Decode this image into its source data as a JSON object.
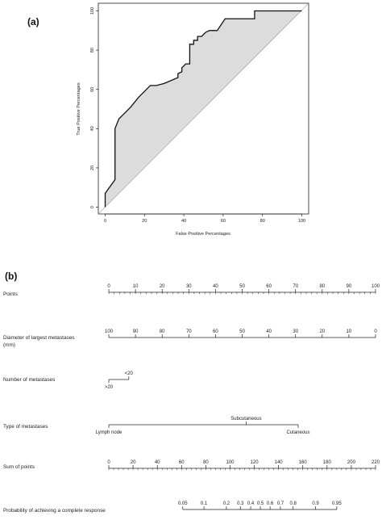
{
  "chart_data": [
    {
      "type": "line",
      "panel_label": "(a)",
      "xlabel": "False Positive Percentages",
      "ylabel": "True Positive Percentages",
      "xlim": [
        0,
        100
      ],
      "ylim": [
        0,
        100
      ],
      "x_ticks": [
        "0",
        "20",
        "40",
        "60",
        "80",
        "100"
      ],
      "y_ticks": [
        "0",
        "20",
        "40",
        "60",
        "80",
        "100"
      ],
      "fill": "#dcdcdc",
      "diagonal": true,
      "series": [
        {
          "x": [
            0,
            0,
            5,
            5,
            7,
            9,
            13,
            17,
            23,
            26,
            30,
            37,
            37,
            39,
            39,
            41,
            41,
            43,
            43,
            45,
            45,
            47,
            47,
            49,
            51,
            53,
            57,
            59,
            61,
            63,
            76,
            76,
            100,
            100
          ],
          "y": [
            0,
            7,
            14,
            40,
            45,
            47,
            51,
            56,
            62,
            62,
            63,
            66,
            68,
            69,
            71,
            73,
            73,
            73,
            83,
            83,
            85,
            85,
            87,
            87,
            89,
            90,
            90,
            93,
            96,
            96,
            96,
            100,
            100,
            100
          ]
        }
      ]
    },
    {
      "type": "nomogram",
      "panel_label": "(b)",
      "rows": [
        {
          "label": "Points",
          "label_lines": [
            "Points"
          ],
          "ticks": [
            {
              "label": "0",
              "pos": 0
            },
            {
              "label": "10",
              "pos": 10
            },
            {
              "label": "20",
              "pos": 20
            },
            {
              "label": "30",
              "pos": 30
            },
            {
              "label": "40",
              "pos": 40
            },
            {
              "label": "50",
              "pos": 50
            },
            {
              "label": "60",
              "pos": 60
            },
            {
              "label": "70",
              "pos": 70
            },
            {
              "label": "80",
              "pos": 80
            },
            {
              "label": "90",
              "pos": 90
            },
            {
              "label": "100",
              "pos": 100
            }
          ],
          "minor_step": 2,
          "range": [
            0,
            100
          ]
        },
        {
          "label": "Diameter of largest metastases (mm)",
          "label_lines": [
            "Diameter of largest metastases",
            "(mm)"
          ],
          "ticks": [
            {
              "label": "100",
              "pos": 0
            },
            {
              "label": "90",
              "pos": 10
            },
            {
              "label": "80",
              "pos": 20
            },
            {
              "label": "70",
              "pos": 30
            },
            {
              "label": "60",
              "pos": 40
            },
            {
              "label": "50",
              "pos": 50
            },
            {
              "label": "40",
              "pos": 60
            },
            {
              "label": "30",
              "pos": 70
            },
            {
              "label": "20",
              "pos": 80
            },
            {
              "label": "10",
              "pos": 90
            },
            {
              "label": "0",
              "pos": 100
            }
          ],
          "range": [
            0,
            100
          ]
        },
        {
          "label": "Number of metastases",
          "label_lines": [
            "Number of metastases"
          ],
          "ticks": [
            {
              "label": ">20",
              "pos": 0,
              "side": "below"
            },
            {
              "label": "<20",
              "pos": 7.5,
              "side": "above"
            }
          ],
          "range": [
            0,
            7.5
          ]
        },
        {
          "label": "Type of metastases",
          "label_lines": [
            "Type of metastases"
          ],
          "ticks": [
            {
              "label": "Lymph node",
              "pos": 0,
              "side": "below"
            },
            {
              "label": "Subcutaneous",
              "pos": 51.5,
              "side": "above"
            },
            {
              "label": "Cutaneous",
              "pos": 71,
              "side": "below"
            }
          ],
          "range": [
            0,
            71
          ]
        },
        {
          "label": "Sum of points",
          "label_lines": [
            "Sum of points"
          ],
          "ticks": [
            {
              "label": "0",
              "pos": 0
            },
            {
              "label": "20",
              "pos": 20
            },
            {
              "label": "40",
              "pos": 40
            },
            {
              "label": "60",
              "pos": 60
            },
            {
              "label": "80",
              "pos": 80
            },
            {
              "label": "100",
              "pos": 100
            },
            {
              "label": "120",
              "pos": 120
            },
            {
              "label": "140",
              "pos": 140
            },
            {
              "label": "160",
              "pos": 160
            },
            {
              "label": "180",
              "pos": 180
            },
            {
              "label": "200",
              "pos": 200
            },
            {
              "label": "220",
              "pos": 220
            }
          ],
          "minor_step": 4,
          "range": [
            0,
            220
          ]
        },
        {
          "label": "Probability of achieving a complete response",
          "label_lines": [
            "Probability of achieving a complete response"
          ],
          "ticks": [
            {
              "label": "0.05",
              "pos": 61
            },
            {
              "label": "0.1",
              "pos": 78.5
            },
            {
              "label": "0.2",
              "pos": 97
            },
            {
              "label": "0.3",
              "pos": 108.5
            },
            {
              "label": "0.4",
              "pos": 117
            },
            {
              "label": "0.5",
              "pos": 125
            },
            {
              "label": "0.6",
              "pos": 133
            },
            {
              "label": "0.7",
              "pos": 141.5
            },
            {
              "label": "0.8",
              "pos": 152
            },
            {
              "label": "0.9",
              "pos": 170.5
            },
            {
              "label": "0.95",
              "pos": 188
            }
          ],
          "range": [
            61,
            188
          ]
        }
      ]
    }
  ]
}
